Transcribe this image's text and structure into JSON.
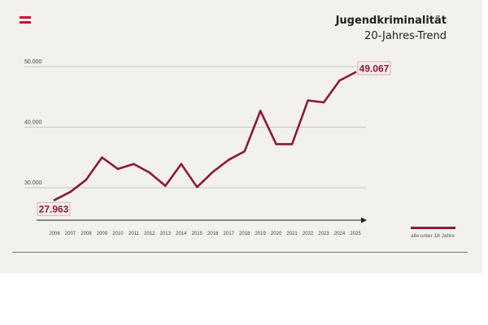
{
  "header": {
    "title": "Jugendkriminalität",
    "subtitle": "20-Jahres-Trend"
  },
  "flag_colors": [
    "#c8102e",
    "#ffffff",
    "#c8102e"
  ],
  "colors": {
    "series": "#8b1a35",
    "label_bg": "#f7ecef",
    "label_border": "#c9a6b0",
    "grid": "#b9b6b2",
    "arrow": "#1f1f1f",
    "tick_text": "#444444"
  },
  "chart_data": {
    "type": "line",
    "x": [
      "2006",
      "2007",
      "2008",
      "2009",
      "2010",
      "2011",
      "2012",
      "2013",
      "2014",
      "2015",
      "2016",
      "2017",
      "2018",
      "2019",
      "2020",
      "2021",
      "2022",
      "2023",
      "2024",
      "2025"
    ],
    "series": [
      {
        "name": "alle unter 18 Jahre",
        "values": [
          27963,
          29300,
          31300,
          35000,
          33100,
          33900,
          32500,
          30300,
          33900,
          30100,
          32600,
          34600,
          36000,
          42700,
          37200,
          37200,
          44400,
          44100,
          47700,
          49067
        ]
      }
    ],
    "ylim": [
      24000,
      52000
    ],
    "yticks": [
      30000,
      40000,
      50000
    ],
    "ytick_labels": [
      "30.000",
      "40.000",
      "50.000"
    ],
    "grid": true,
    "annotations": [
      {
        "index": 0,
        "text": "27.963",
        "placement": "below"
      },
      {
        "index": 19,
        "text": "49.067",
        "placement": "right"
      }
    ],
    "xlabel": "",
    "ylabel": "",
    "legend": {
      "placement": "bottom-right"
    }
  }
}
